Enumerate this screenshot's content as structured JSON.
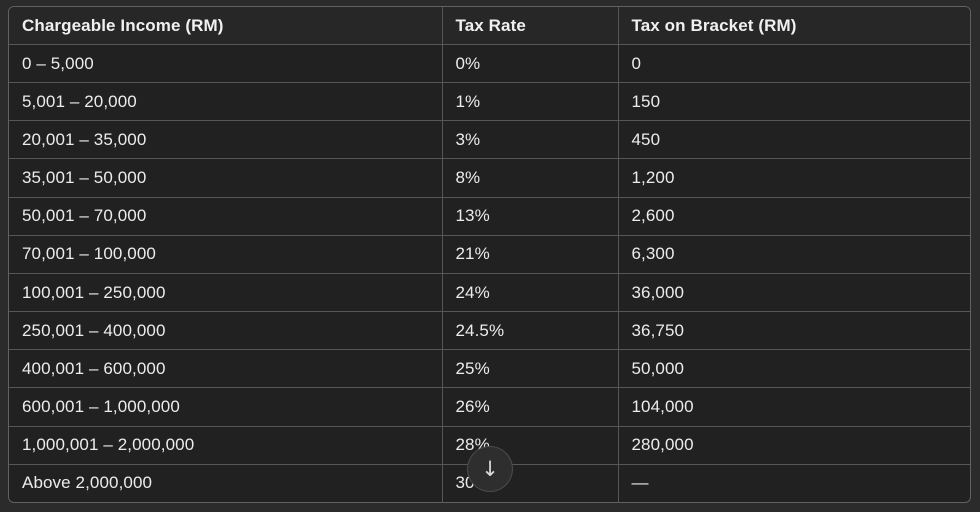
{
  "table": {
    "columns": [
      "Chargeable Income (RM)",
      "Tax Rate",
      "Tax on Bracket (RM)"
    ],
    "rows": [
      [
        "0 – 5,000",
        "0%",
        "0"
      ],
      [
        "5,001 – 20,000",
        "1%",
        "150"
      ],
      [
        "20,001 – 35,000",
        "3%",
        "450"
      ],
      [
        "35,001 – 50,000",
        "8%",
        "1,200"
      ],
      [
        "50,001 – 70,000",
        "13%",
        "2,600"
      ],
      [
        "70,001 – 100,000",
        "21%",
        "6,300"
      ],
      [
        "100,001 – 250,000",
        "24%",
        "36,000"
      ],
      [
        "250,001 – 400,000",
        "24.5%",
        "36,750"
      ],
      [
        "400,001 – 600,000",
        "25%",
        "50,000"
      ],
      [
        "600,001 – 1,000,000",
        "26%",
        "104,000"
      ],
      [
        "1,000,001 – 2,000,000",
        "28%",
        "280,000"
      ],
      [
        "Above 2,000,000",
        "30%",
        "—"
      ]
    ]
  },
  "scroll_button": {
    "icon_name": "arrow-down-icon",
    "glyph": "↓"
  },
  "colors": {
    "page_background": "#2b2b2b",
    "cell_background": "#212121",
    "header_background": "#272727",
    "border": "#565656",
    "text": "#ececec"
  }
}
